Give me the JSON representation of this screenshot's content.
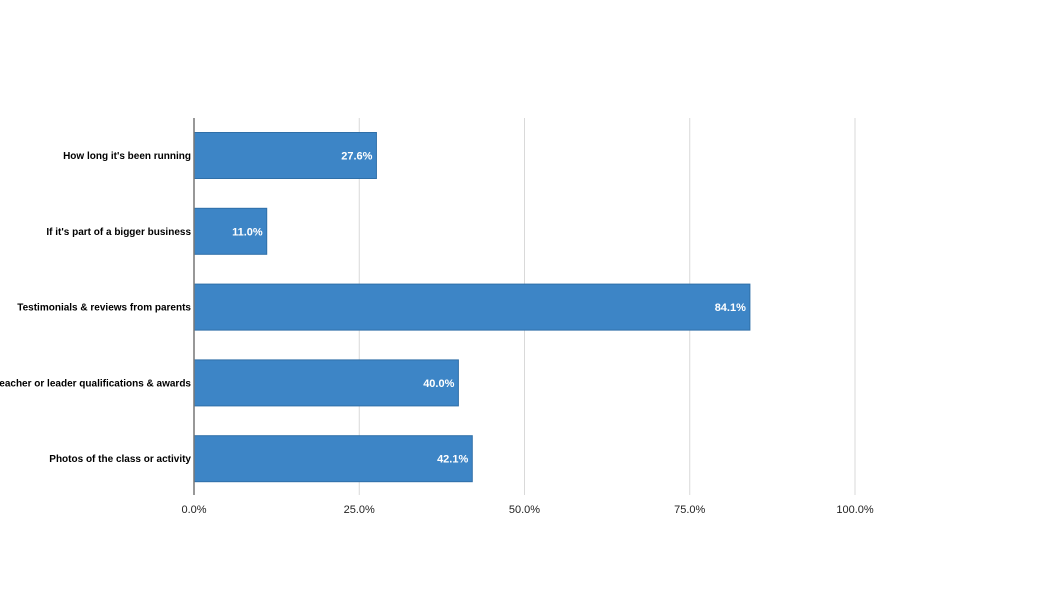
{
  "chart_data": {
    "type": "bar",
    "orientation": "horizontal",
    "categories": [
      "How long it's been running",
      "If it's part of a bigger business",
      "Testimonials & reviews from parents",
      "Teacher or leader qualifications & awards",
      "Photos of the class or activity"
    ],
    "values": [
      27.6,
      11.0,
      84.1,
      40.0,
      42.1
    ],
    "data_labels": [
      "27.6%",
      "11.0%",
      "84.1%",
      "40.0%",
      "42.1%"
    ],
    "xlim": [
      0,
      100
    ],
    "x_ticks": [
      0,
      25,
      50,
      75,
      100
    ],
    "x_tick_labels": [
      "0.0%",
      "25.0%",
      "50.0%",
      "75.0%",
      "100.0%"
    ],
    "grid": true,
    "colors": {
      "bar_fill": "#3d85c6",
      "bar_stroke": "#2f6fa8",
      "grid": "#d9d9d9",
      "axis": "#777777"
    }
  }
}
